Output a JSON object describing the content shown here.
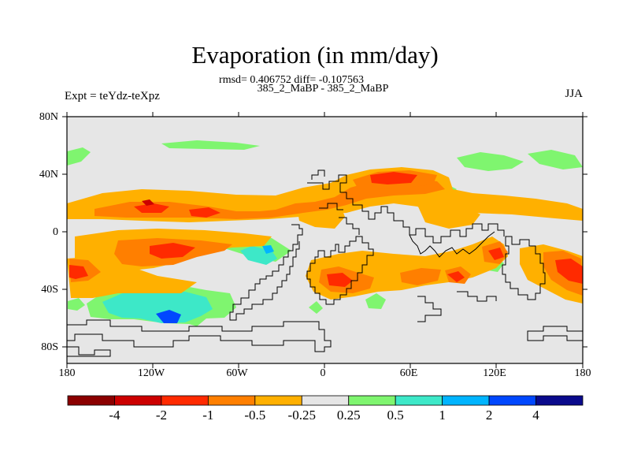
{
  "title": "Evaporation (in mm/day)",
  "stats": "rmsd= 0.406752 diff= -0.107563",
  "subtitle": "385_2_MaBP - 385_2_MaBP",
  "experiment": "Expt = teYdz-teXpz",
  "season": "JJA",
  "lat_ticks": [
    "80N",
    "40N",
    "0",
    "40S",
    "80S"
  ],
  "lon_ticks": [
    "180",
    "120W",
    "60W",
    "0",
    "60E",
    "120E",
    "180"
  ],
  "colorbar": {
    "labels": [
      "-4",
      "-2",
      "-1",
      "-0.5",
      "-0.25",
      "0.25",
      "0.5",
      "1",
      "2",
      "4"
    ],
    "colors": [
      "#8b0000",
      "#cc0000",
      "#ff2a00",
      "#ff7f00",
      "#ffb000",
      "#e6e6e6",
      "#7ff56f",
      "#3de8c8",
      "#00b4ff",
      "#0047ff",
      "#0a0a8c"
    ]
  },
  "colors": {
    "background": "#e6e6e6",
    "frame": "#000000",
    "coast": "#000000"
  }
}
